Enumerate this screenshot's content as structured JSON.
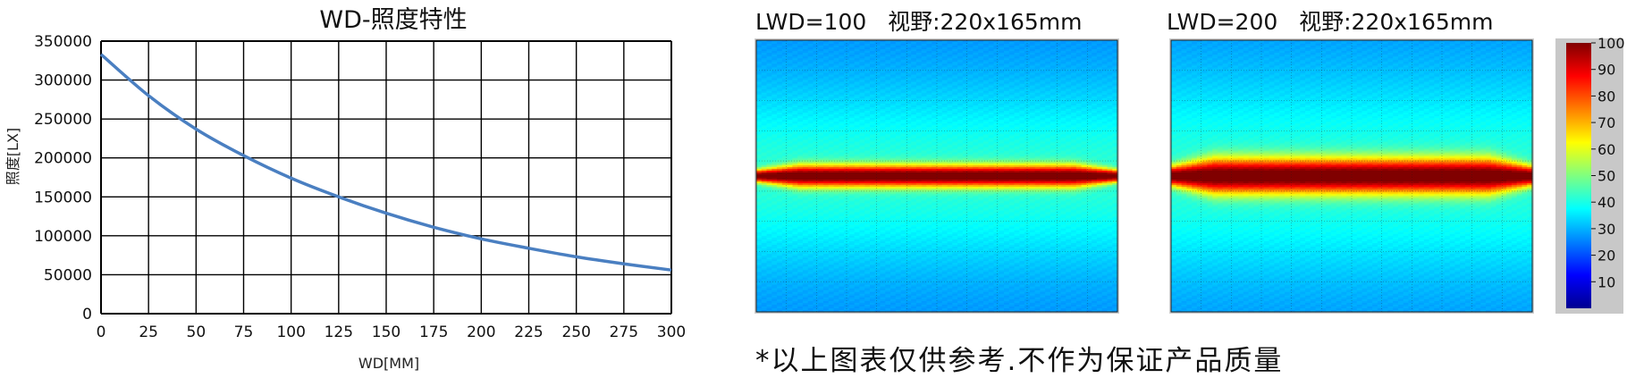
{
  "chart_data": [
    {
      "type": "line",
      "title": "WD-照度特性",
      "xlabel": "WD[MM]",
      "ylabel": "照度[LX]",
      "xlim": [
        0,
        300
      ],
      "ylim": [
        0,
        350000
      ],
      "x_ticks": [
        "0",
        "25",
        "50",
        "75",
        "100",
        "125",
        "150",
        "175",
        "200",
        "225",
        "250",
        "275",
        "300"
      ],
      "y_ticks": [
        "0",
        "50000",
        "100000",
        "150000",
        "200000",
        "250000",
        "300000",
        "350000"
      ],
      "grid": true,
      "series": [
        {
          "color": "#4a7fc1",
          "x": [
            0,
            25,
            50,
            75,
            100,
            125,
            150,
            175,
            200,
            225,
            250,
            275,
            300
          ],
          "y": [
            333000,
            280000,
            237000,
            203000,
            174000,
            150000,
            129000,
            111000,
            96000,
            84000,
            73000,
            64000,
            56000
          ]
        }
      ]
    },
    {
      "type": "heatmap",
      "title": "LWD=100   视野:220x165mm",
      "band": {
        "center": 0.5,
        "halfwidth": 0.04,
        "spread": 0.33,
        "width_fraction": 1.0
      }
    },
    {
      "type": "heatmap",
      "title": "LWD=200   视野:220x165mm",
      "band": {
        "center": 0.5,
        "halfwidth": 0.065,
        "spread": 0.37,
        "width_fraction": 1.0
      }
    },
    {
      "type": "colorbar",
      "ticks": [
        "10",
        "20",
        "30",
        "40",
        "50",
        "60",
        "70",
        "80",
        "90",
        "100"
      ],
      "range": [
        0,
        100
      ]
    }
  ],
  "disclaimer": "*以上图表仅供参考.不作为保证产品质量"
}
